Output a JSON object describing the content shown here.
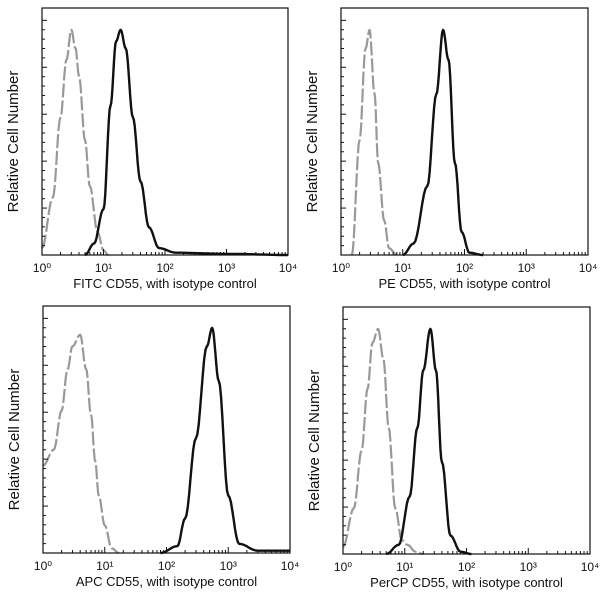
{
  "chart_data": [
    {
      "type": "line",
      "xlabel": "FITC  CD55,  with isotype control",
      "ylabel": "Relative Cell Number",
      "xscale": "log",
      "xlim": [
        1,
        10000
      ],
      "xticks": [
        "10⁰",
        "10¹",
        "10²",
        "10³",
        "10⁴"
      ],
      "series": [
        {
          "role": "isotype control",
          "color": "#999999",
          "style": "dashed",
          "points": [
            [
              1,
              0.03
            ],
            [
              1.5,
              0.25
            ],
            [
              2,
              0.6
            ],
            [
              2.5,
              0.85
            ],
            [
              3,
              0.98
            ],
            [
              3.5,
              0.9
            ],
            [
              4,
              0.78
            ],
            [
              5,
              0.5
            ],
            [
              6,
              0.3
            ],
            [
              8,
              0.1
            ],
            [
              10,
              0.02
            ],
            [
              12,
              0
            ]
          ]
        },
        {
          "role": "CD55",
          "color": "#111111",
          "style": "solid",
          "points": [
            [
              5,
              0
            ],
            [
              7,
              0.05
            ],
            [
              10,
              0.2
            ],
            [
              13,
              0.65
            ],
            [
              16,
              0.93
            ],
            [
              19,
              0.98
            ],
            [
              23,
              0.9
            ],
            [
              30,
              0.6
            ],
            [
              40,
              0.32
            ],
            [
              55,
              0.12
            ],
            [
              80,
              0.03
            ],
            [
              150,
              0.01
            ],
            [
              1000,
              0.005
            ],
            [
              10000,
              0
            ]
          ]
        }
      ]
    },
    {
      "type": "line",
      "xlabel": "PE CD55,  with isotype control",
      "ylabel": "Relative Cell Number",
      "xscale": "log",
      "xlim": [
        1,
        10000
      ],
      "xticks": [
        "10⁰",
        "10¹",
        "10²",
        "10³",
        "10⁴"
      ],
      "series": [
        {
          "role": "isotype control",
          "color": "#999999",
          "style": "dashed",
          "points": [
            [
              1.5,
              0
            ],
            [
              2,
              0.5
            ],
            [
              2.5,
              0.9
            ],
            [
              2.9,
              0.98
            ],
            [
              3.5,
              0.7
            ],
            [
              4,
              0.4
            ],
            [
              5,
              0.15
            ],
            [
              6,
              0.03
            ],
            [
              8,
              0
            ]
          ]
        },
        {
          "role": "CD55",
          "color": "#111111",
          "style": "solid",
          "points": [
            [
              10,
              0
            ],
            [
              15,
              0.05
            ],
            [
              25,
              0.3
            ],
            [
              35,
              0.7
            ],
            [
              45,
              0.98
            ],
            [
              55,
              0.85
            ],
            [
              70,
              0.4
            ],
            [
              90,
              0.1
            ],
            [
              120,
              0.01
            ],
            [
              200,
              0
            ]
          ]
        }
      ]
    },
    {
      "type": "line",
      "xlabel": "APC CD55, with isotype control",
      "ylabel": "Relative Cell Number",
      "xscale": "log",
      "xlim": [
        1,
        10000
      ],
      "xticks": [
        "10⁰",
        "10¹",
        "10²",
        "10³",
        "10⁴"
      ],
      "series": [
        {
          "role": "isotype control",
          "color": "#999999",
          "style": "dashed",
          "points": [
            [
              1,
              0.38
            ],
            [
              1.5,
              0.45
            ],
            [
              2,
              0.62
            ],
            [
              2.5,
              0.8
            ],
            [
              3,
              0.9
            ],
            [
              4,
              0.95
            ],
            [
              5,
              0.8
            ],
            [
              6,
              0.6
            ],
            [
              7,
              0.4
            ],
            [
              8,
              0.25
            ],
            [
              10,
              0.12
            ],
            [
              13,
              0.02
            ],
            [
              17,
              0
            ]
          ]
        },
        {
          "role": "CD55",
          "color": "#111111",
          "style": "solid",
          "points": [
            [
              80,
              0
            ],
            [
              150,
              0.03
            ],
            [
              200,
              0.15
            ],
            [
              300,
              0.5
            ],
            [
              450,
              0.9
            ],
            [
              550,
              0.98
            ],
            [
              700,
              0.75
            ],
            [
              1000,
              0.25
            ],
            [
              1500,
              0.04
            ],
            [
              3000,
              0.01
            ],
            [
              10000,
              0.01
            ]
          ]
        }
      ]
    },
    {
      "type": "line",
      "xlabel": "PerCP CD55, with isotype control",
      "ylabel": "Relative Cell Number",
      "xscale": "log",
      "xlim": [
        1,
        10000
      ],
      "xticks": [
        "10⁰",
        "10¹",
        "10²",
        "10³",
        "10⁴"
      ],
      "series": [
        {
          "role": "isotype control",
          "color": "#999999",
          "style": "dashed",
          "points": [
            [
              1,
              0.03
            ],
            [
              1.5,
              0.2
            ],
            [
              2,
              0.45
            ],
            [
              2.5,
              0.72
            ],
            [
              3,
              0.92
            ],
            [
              3.7,
              0.98
            ],
            [
              4.5,
              0.85
            ],
            [
              5.5,
              0.55
            ],
            [
              7,
              0.2
            ],
            [
              9,
              0.06
            ],
            [
              11,
              0.04
            ],
            [
              15,
              0.01
            ],
            [
              20,
              0
            ]
          ]
        },
        {
          "role": "CD55",
          "color": "#111111",
          "style": "solid",
          "points": [
            [
              5,
              0
            ],
            [
              8,
              0.04
            ],
            [
              12,
              0.25
            ],
            [
              16,
              0.55
            ],
            [
              20,
              0.8
            ],
            [
              26,
              0.98
            ],
            [
              32,
              0.8
            ],
            [
              40,
              0.4
            ],
            [
              55,
              0.08
            ],
            [
              80,
              0.01
            ],
            [
              120,
              0
            ]
          ]
        }
      ]
    }
  ]
}
